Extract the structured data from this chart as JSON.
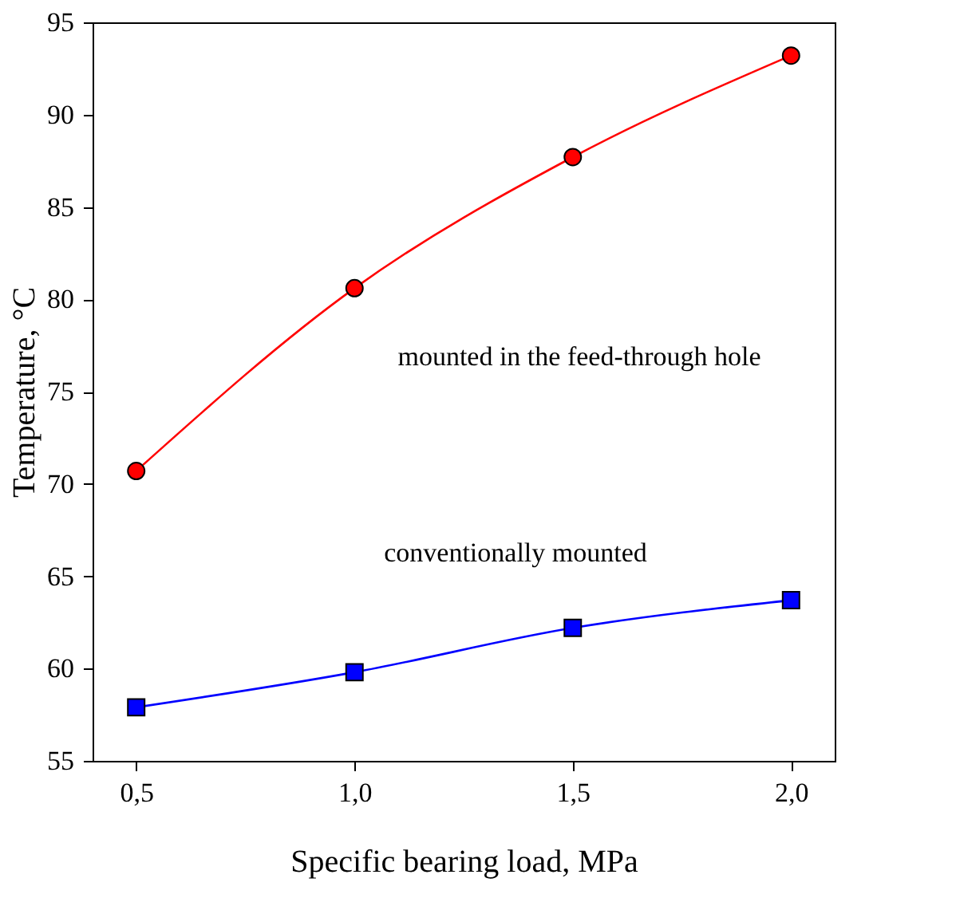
{
  "chart_data": {
    "type": "line",
    "xlabel": "Specific bearing load, MPa",
    "ylabel": "Temperature, °C",
    "x": [
      0.5,
      1.0,
      1.5,
      2.0
    ],
    "series": [
      {
        "color": "#ff0000",
        "marker": "circle",
        "values": [
          70.7,
          80.6,
          87.7,
          93.2
        ]
      },
      {
        "color": "#0000ff",
        "marker": "square",
        "values": [
          57.9,
          59.8,
          62.2,
          63.7
        ]
      }
    ],
    "xlim": [
      0.4,
      2.1
    ],
    "xticks": [
      {
        "value": 0.5,
        "label": "0,5"
      },
      {
        "value": 1.0,
        "label": "1,0"
      },
      {
        "value": 1.5,
        "label": "1,5"
      },
      {
        "value": 2.0,
        "label": "2,0"
      }
    ],
    "ylim": [
      55,
      95
    ],
    "yticks": [
      55,
      60,
      65,
      70,
      75,
      80,
      85,
      90,
      95
    ],
    "annotations": [
      "mounted in the feed-through hole",
      "conventionally mounted"
    ],
    "grid": false
  }
}
